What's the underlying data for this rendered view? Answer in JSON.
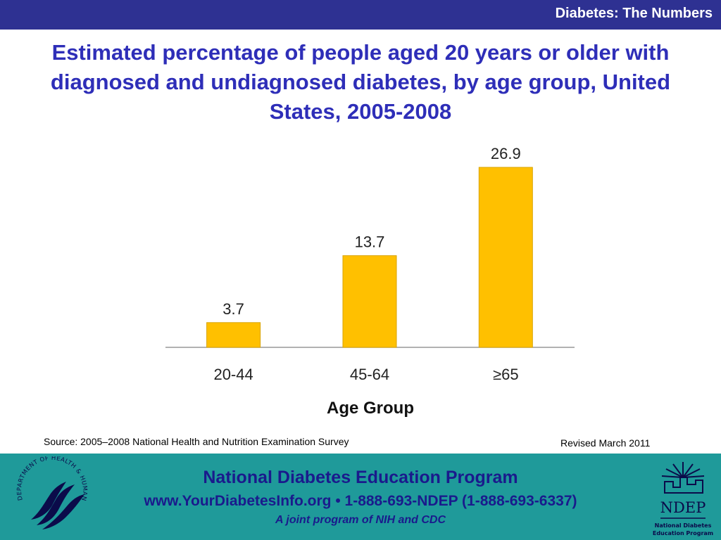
{
  "header": {
    "section_title": "Diabetes: The Numbers"
  },
  "slide": {
    "title": "Estimated percentage of people aged 20 years or older with diagnosed and undiagnosed diabetes, by age group, United States, 2005-2008"
  },
  "chart_data": {
    "type": "bar",
    "title": "",
    "categories": [
      "20-44",
      "45-64",
      "≥65"
    ],
    "values": [
      3.7,
      13.7,
      26.9
    ],
    "data_labels": [
      "3.7",
      "13.7",
      "26.9"
    ],
    "xlabel": "Age Group",
    "ylabel": "",
    "ylim": [
      0,
      30
    ],
    "grid": false,
    "legend": "none",
    "bar_color": "#ffc000"
  },
  "notes": {
    "source": "Source: 2005–2008 National Health and Nutrition Examination Survey",
    "revised": "Revised March 2011"
  },
  "footer": {
    "program": "National Diabetes Education Program",
    "contact": "www.YourDiabetesInfo.org • 1-888-693-NDEP (1-888-693-6337)",
    "tagline": "A joint program of NIH and CDC",
    "hhs_seal": {
      "name": "hhs-seal-logo",
      "text": "DEPARTMENT OF HEALTH & HUMAN SERVICES · USA"
    },
    "ndep_logo": {
      "name": "ndep-logo",
      "wordmark": "NDEP",
      "caption_line1": "National Diabetes",
      "caption_line2": "Education Program"
    }
  },
  "colors": {
    "header_bar": "#2e3192",
    "title_text": "#2e2eb8",
    "footer_bg": "#1f9a9a",
    "footer_text": "#1a1a8c"
  }
}
